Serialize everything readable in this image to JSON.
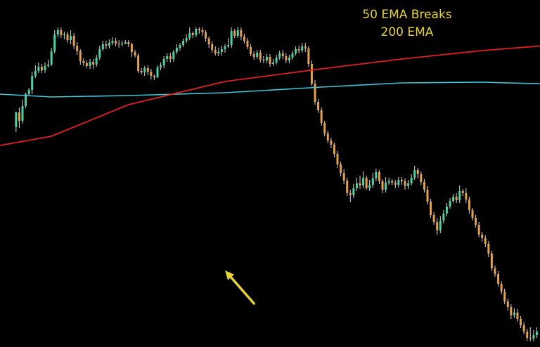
{
  "chart_data": {
    "type": "candlestick",
    "title": "",
    "xlabel": "",
    "ylabel": "",
    "grid": false,
    "ylim": [
      0,
      494
    ],
    "colors": {
      "background": "#000000",
      "bull": "#4fd1a0",
      "bear": "#e3a04f",
      "wick": "#d6d6d6",
      "ema50": "#e02020",
      "ema200": "#3cc7d6",
      "annotation": "#e8d23a"
    },
    "annotation": {
      "line1": "50 EMA Breaks",
      "line2": "200 EMA",
      "arrow_from": [
        79,
        62
      ],
      "arrow_to": [
        70,
        109
      ]
    },
    "ema50": [
      [
        0,
        287
      ],
      [
        16,
        300
      ],
      [
        40,
        345
      ],
      [
        70,
        378
      ],
      [
        100,
        396
      ],
      [
        125,
        410
      ],
      [
        150,
        422
      ],
      [
        175,
        431
      ],
      [
        200,
        436
      ],
      [
        215,
        436
      ],
      [
        225,
        434
      ],
      [
        235,
        433
      ],
      [
        245,
        432
      ],
      [
        255,
        428
      ],
      [
        265,
        418
      ],
      [
        280,
        393
      ],
      [
        300,
        363
      ],
      [
        320,
        330
      ],
      [
        340,
        300
      ],
      [
        360,
        265
      ],
      [
        380,
        236
      ],
      [
        400,
        212
      ],
      [
        420,
        190
      ],
      [
        440,
        174
      ],
      [
        456,
        165
      ]
    ],
    "ema200": [
      [
        0,
        360
      ],
      [
        16,
        356
      ],
      [
        40,
        358
      ],
      [
        70,
        362
      ],
      [
        100,
        370
      ],
      [
        125,
        376
      ],
      [
        150,
        377
      ],
      [
        175,
        374
      ],
      [
        200,
        370
      ],
      [
        220,
        370
      ],
      [
        240,
        369
      ],
      [
        260,
        368
      ],
      [
        280,
        367
      ],
      [
        300,
        366
      ],
      [
        330,
        365
      ],
      [
        360,
        364
      ],
      [
        390,
        362
      ],
      [
        420,
        358
      ],
      [
        440,
        350
      ],
      [
        456,
        338
      ]
    ],
    "candles": [
      [
        5,
        313,
        334,
        306,
        335
      ],
      [
        6,
        334,
        322,
        312,
        341
      ],
      [
        7,
        322,
        343,
        318,
        352
      ],
      [
        8,
        343,
        360,
        340,
        362
      ],
      [
        9,
        360,
        366,
        358,
        369
      ],
      [
        10,
        366,
        386,
        360,
        392
      ],
      [
        11,
        386,
        393,
        383,
        401
      ],
      [
        12,
        393,
        399,
        390,
        405
      ],
      [
        13,
        399,
        394,
        390,
        403
      ],
      [
        14,
        394,
        400,
        390,
        405
      ],
      [
        15,
        400,
        402,
        398,
        409
      ],
      [
        16,
        402,
        421,
        400,
        426
      ],
      [
        17,
        421,
        445,
        418,
        451
      ],
      [
        18,
        445,
        451,
        441,
        455
      ],
      [
        19,
        451,
        444,
        440,
        455
      ],
      [
        20,
        444,
        445,
        438,
        449
      ],
      [
        21,
        445,
        437,
        433,
        449
      ],
      [
        22,
        437,
        443,
        431,
        451
      ],
      [
        23,
        443,
        429,
        424,
        447
      ],
      [
        24,
        429,
        421,
        416,
        434
      ],
      [
        25,
        421,
        407,
        402,
        424
      ],
      [
        26,
        407,
        404,
        400,
        411
      ],
      [
        27,
        404,
        400,
        397,
        408
      ],
      [
        28,
        400,
        406,
        396,
        410
      ],
      [
        29,
        406,
        402,
        396,
        410
      ],
      [
        30,
        402,
        412,
        399,
        416
      ],
      [
        31,
        412,
        424,
        409,
        429
      ],
      [
        32,
        424,
        431,
        421,
        436
      ],
      [
        33,
        431,
        429,
        424,
        436
      ],
      [
        34,
        429,
        433,
        425,
        438
      ],
      [
        35,
        433,
        436,
        430,
        441
      ],
      [
        36,
        436,
        432,
        428,
        440
      ],
      [
        37,
        432,
        431,
        426,
        437
      ],
      [
        38,
        431,
        432,
        428,
        436
      ],
      [
        39,
        432,
        434,
        431,
        437
      ],
      [
        40,
        434,
        431,
        427,
        437
      ],
      [
        41,
        431,
        420,
        413,
        433
      ],
      [
        42,
        420,
        415,
        412,
        423
      ],
      [
        43,
        415,
        393,
        390,
        418
      ],
      [
        44,
        393,
        391,
        388,
        397
      ],
      [
        45,
        391,
        397,
        386,
        400
      ],
      [
        46,
        397,
        392,
        387,
        401
      ],
      [
        47,
        392,
        386,
        381,
        396
      ],
      [
        48,
        386,
        384,
        380,
        388
      ],
      [
        49,
        384,
        398,
        383,
        401
      ],
      [
        50,
        398,
        401,
        394,
        405
      ],
      [
        51,
        401,
        410,
        397,
        414
      ],
      [
        52,
        410,
        414,
        406,
        418
      ],
      [
        53,
        414,
        410,
        405,
        419
      ],
      [
        54,
        410,
        420,
        406,
        423
      ],
      [
        55,
        420,
        426,
        417,
        431
      ],
      [
        56,
        426,
        430,
        422,
        433
      ],
      [
        57,
        430,
        436,
        427,
        439
      ],
      [
        58,
        436,
        440,
        433,
        445
      ],
      [
        59,
        440,
        447,
        437,
        455
      ],
      [
        60,
        447,
        444,
        440,
        449
      ],
      [
        61,
        444,
        453,
        441,
        455
      ],
      [
        62,
        453,
        451,
        446,
        455
      ],
      [
        63,
        451,
        448,
        443,
        455
      ],
      [
        64,
        448,
        439,
        435,
        451
      ],
      [
        65,
        439,
        431,
        426,
        442
      ],
      [
        66,
        431,
        423,
        419,
        435
      ],
      [
        67,
        423,
        418,
        415,
        428
      ],
      [
        68,
        418,
        420,
        414,
        426
      ],
      [
        69,
        420,
        424,
        415,
        429
      ],
      [
        70,
        424,
        428,
        419,
        431
      ],
      [
        71,
        428,
        430,
        426,
        440
      ],
      [
        72,
        430,
        450,
        426,
        455
      ],
      [
        73,
        450,
        443,
        440,
        453
      ],
      [
        74,
        443,
        451,
        440,
        456
      ],
      [
        75,
        451,
        442,
        437,
        455
      ],
      [
        76,
        442,
        436,
        432,
        446
      ],
      [
        77,
        436,
        427,
        424,
        440
      ],
      [
        78,
        427,
        417,
        414,
        431
      ],
      [
        79,
        417,
        413,
        409,
        421
      ],
      [
        80,
        413,
        419,
        410,
        423
      ],
      [
        81,
        419,
        409,
        405,
        423
      ],
      [
        82,
        409,
        408,
        404,
        414
      ],
      [
        83,
        408,
        413,
        404,
        417
      ],
      [
        84,
        413,
        403,
        399,
        417
      ],
      [
        85,
        403,
        405,
        400,
        410
      ],
      [
        86,
        405,
        412,
        402,
        416
      ],
      [
        87,
        412,
        418,
        409,
        422
      ],
      [
        88,
        418,
        414,
        410,
        423
      ],
      [
        89,
        414,
        408,
        404,
        418
      ],
      [
        90,
        408,
        412,
        404,
        416
      ],
      [
        91,
        412,
        418,
        409,
        422
      ],
      [
        92,
        418,
        424,
        415,
        428
      ],
      [
        93,
        424,
        422,
        418,
        429
      ],
      [
        94,
        422,
        428,
        419,
        433
      ],
      [
        95,
        428,
        425,
        420,
        433
      ],
      [
        96,
        425,
        403,
        399,
        428
      ],
      [
        97,
        403,
        375,
        372,
        408
      ],
      [
        98,
        375,
        349,
        345,
        380
      ],
      [
        99,
        349,
        337,
        333,
        353
      ],
      [
        100,
        337,
        319,
        315,
        341
      ],
      [
        101,
        319,
        304,
        300,
        322
      ],
      [
        102,
        304,
        294,
        290,
        308
      ],
      [
        103,
        294,
        288,
        283,
        298
      ],
      [
        104,
        288,
        275,
        270,
        291
      ],
      [
        105,
        275,
        260,
        255,
        279
      ],
      [
        106,
        260,
        248,
        243,
        264
      ],
      [
        107,
        248,
        237,
        232,
        253
      ],
      [
        108,
        237,
        219,
        215,
        241
      ],
      [
        109,
        219,
        216,
        206,
        224
      ],
      [
        110,
        216,
        226,
        212,
        232
      ],
      [
        111,
        226,
        233,
        222,
        241
      ],
      [
        112,
        233,
        230,
        225,
        244
      ],
      [
        113,
        230,
        241,
        226,
        250
      ],
      [
        114,
        241,
        226,
        224,
        244
      ],
      [
        115,
        226,
        231,
        222,
        238
      ],
      [
        116,
        231,
        240,
        227,
        248
      ],
      [
        117,
        240,
        249,
        236,
        254
      ],
      [
        118,
        249,
        236,
        232,
        252
      ],
      [
        119,
        236,
        224,
        219,
        239
      ],
      [
        120,
        224,
        234,
        220,
        242
      ],
      [
        121,
        234,
        236,
        231,
        241
      ],
      [
        122,
        236,
        234,
        230,
        239
      ],
      [
        123,
        234,
        231,
        226,
        238
      ],
      [
        124,
        231,
        238,
        227,
        242
      ],
      [
        125,
        238,
        236,
        231,
        242
      ],
      [
        126,
        236,
        229,
        224,
        240
      ],
      [
        127,
        229,
        233,
        225,
        238
      ],
      [
        128,
        233,
        241,
        230,
        246
      ],
      [
        129,
        241,
        252,
        238,
        258
      ],
      [
        130,
        252,
        246,
        240,
        255
      ],
      [
        131,
        246,
        235,
        231,
        250
      ],
      [
        132,
        235,
        224,
        220,
        239
      ],
      [
        133,
        224,
        207,
        203,
        229
      ],
      [
        134,
        207,
        188,
        184,
        211
      ],
      [
        135,
        188,
        178,
        174,
        192
      ],
      [
        136,
        178,
        166,
        160,
        183
      ],
      [
        137,
        166,
        180,
        162,
        186
      ],
      [
        138,
        180,
        190,
        176,
        195
      ],
      [
        139,
        190,
        200,
        186,
        205
      ],
      [
        140,
        200,
        208,
        197,
        212
      ],
      [
        141,
        208,
        214,
        205,
        218
      ],
      [
        142,
        214,
        209,
        205,
        219
      ],
      [
        143,
        209,
        222,
        205,
        230
      ],
      [
        144,
        222,
        219,
        215,
        225
      ],
      [
        145,
        219,
        210,
        205,
        226
      ],
      [
        146,
        210,
        195,
        190,
        214
      ],
      [
        147,
        195,
        184,
        180,
        198
      ],
      [
        148,
        184,
        174,
        170,
        188
      ],
      [
        149,
        174,
        160,
        156,
        178
      ],
      [
        150,
        160,
        155,
        150,
        164
      ],
      [
        151,
        155,
        147,
        142,
        159
      ],
      [
        152,
        147,
        133,
        128,
        151
      ],
      [
        153,
        133,
        112,
        108,
        137
      ],
      [
        154,
        112,
        104,
        100,
        116
      ],
      [
        155,
        104,
        90,
        86,
        108
      ],
      [
        156,
        90,
        79,
        75,
        94
      ],
      [
        157,
        79,
        65,
        61,
        83
      ],
      [
        158,
        65,
        57,
        52,
        69
      ],
      [
        159,
        57,
        45,
        40,
        61
      ],
      [
        160,
        45,
        49,
        41,
        55
      ],
      [
        161,
        49,
        40,
        36,
        54
      ],
      [
        162,
        40,
        31,
        27,
        44
      ],
      [
        163,
        31,
        22,
        18,
        35
      ],
      [
        164,
        22,
        13,
        9,
        26
      ],
      [
        165,
        13,
        12,
        8,
        28
      ],
      [
        166,
        12,
        17,
        8,
        24
      ],
      [
        167,
        17,
        22,
        13,
        28
      ]
    ]
  }
}
